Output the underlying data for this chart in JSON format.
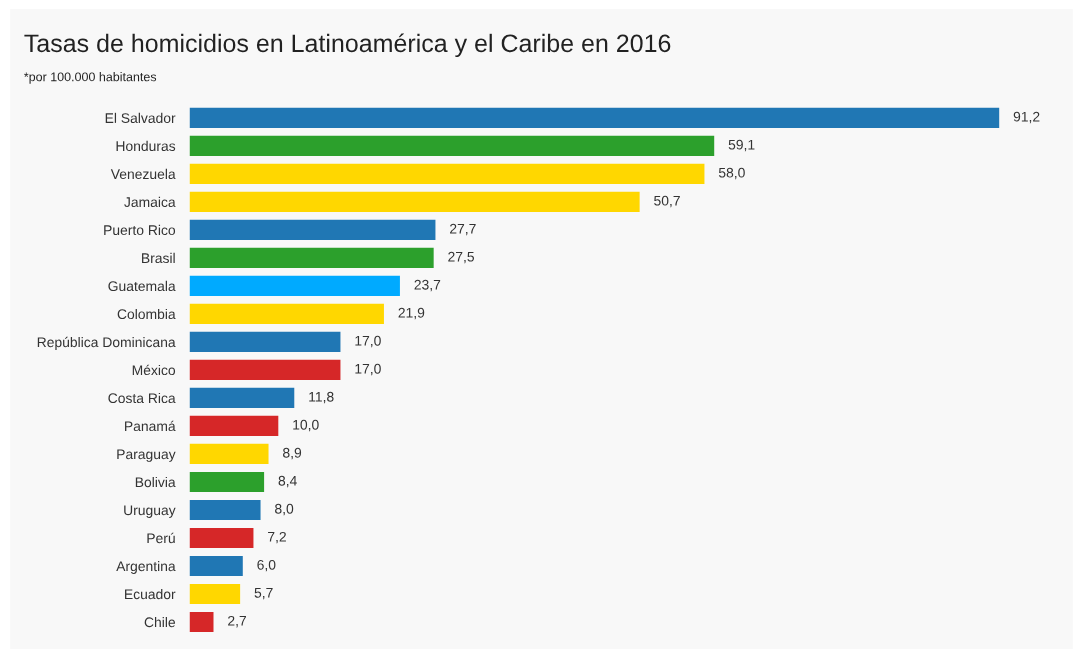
{
  "chart_data": {
    "type": "bar",
    "orientation": "horizontal",
    "title": "Tasas de homicidios en Latinoamérica y el Caribe en 2016",
    "subtitle": "*por 100.000 habitantes",
    "categories": [
      "El Salvador",
      "Honduras",
      "Venezuela",
      "Jamaica",
      "Puerto Rico",
      "Brasil",
      "Guatemala",
      "Colombia",
      "República Dominicana",
      "México",
      "Costa Rica",
      "Panamá",
      "Paraguay",
      "Bolivia",
      "Uruguay",
      "Perú",
      "Argentina",
      "Ecuador",
      "Chile"
    ],
    "values": [
      91.2,
      59.1,
      58.0,
      50.7,
      27.7,
      27.5,
      23.7,
      21.9,
      17.0,
      17.0,
      11.8,
      10.0,
      8.9,
      8.4,
      8.0,
      7.2,
      6.0,
      5.7,
      2.7
    ],
    "value_labels": [
      "91,2",
      "59,1",
      "58,0",
      "50,7",
      "27,7",
      "27,5",
      "23,7",
      "21,9",
      "17,0",
      "17,0",
      "11,8",
      "10,0",
      "8,9",
      "8,4",
      "8,0",
      "7,2",
      "6,0",
      "5,7",
      "2,7"
    ],
    "colors": [
      "#2077b4",
      "#2ca02c",
      "#ffd700",
      "#ffd700",
      "#2077b4",
      "#2ca02c",
      "#00aaff",
      "#ffd700",
      "#2077b4",
      "#d62728",
      "#2077b4",
      "#d62728",
      "#ffd700",
      "#2ca02c",
      "#2077b4",
      "#d62728",
      "#2077b4",
      "#ffd700",
      "#d62728"
    ],
    "grid": false,
    "legend": false
  }
}
